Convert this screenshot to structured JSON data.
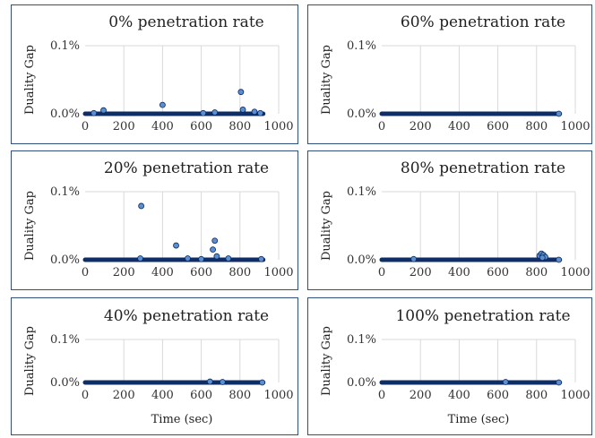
{
  "colors": {
    "marker_fill": "#5b8fd4",
    "marker_stroke": "#0d2a5c",
    "baseline": "#0f2d66",
    "grid": "#d9d9d9",
    "border": "#2f4f7f"
  },
  "chart_data": [
    {
      "type": "scatter",
      "title": "0% penetration rate",
      "ylabel": "Duality Gap",
      "xlabel": "",
      "x_ticks": [
        "0",
        "200",
        "400",
        "600",
        "800",
        "1000"
      ],
      "y_ticks": [
        "0.0%",
        "0.1%"
      ],
      "xlim": [
        0,
        1000
      ],
      "ylim": [
        0,
        0.1
      ],
      "grid": true,
      "baseline": {
        "x_start": 0,
        "x_end": 920,
        "y": 0
      },
      "points": [
        [
          45,
          0.001
        ],
        [
          95,
          0.005
        ],
        [
          400,
          0.013
        ],
        [
          610,
          0.001
        ],
        [
          670,
          0.002
        ],
        [
          805,
          0.032
        ],
        [
          815,
          0.006
        ],
        [
          875,
          0.003
        ],
        [
          905,
          0.001
        ]
      ]
    },
    {
      "type": "scatter",
      "title": "60% penetration rate",
      "ylabel": "Duality Gap",
      "xlabel": "",
      "x_ticks": [
        "0",
        "200",
        "400",
        "600",
        "800",
        "1000"
      ],
      "y_ticks": [
        "0.0%",
        "0.1%"
      ],
      "xlim": [
        0,
        1000
      ],
      "ylim": [
        0,
        0.1
      ],
      "grid": true,
      "baseline": {
        "x_start": 0,
        "x_end": 920,
        "y": 0
      },
      "points": [
        [
          915,
          0.0
        ]
      ]
    },
    {
      "type": "scatter",
      "title": "20% penetration rate",
      "ylabel": "Duality Gap",
      "xlabel": "",
      "x_ticks": [
        "0",
        "200",
        "400",
        "600",
        "800",
        "1000"
      ],
      "y_ticks": [
        "0.0%",
        "0.1%"
      ],
      "xlim": [
        0,
        1000
      ],
      "ylim": [
        0,
        0.1
      ],
      "grid": true,
      "baseline": {
        "x_start": 0,
        "x_end": 920,
        "y": 0
      },
      "points": [
        [
          290,
          0.079
        ],
        [
          285,
          0.002
        ],
        [
          470,
          0.021
        ],
        [
          530,
          0.002
        ],
        [
          600,
          0.001
        ],
        [
          660,
          0.015
        ],
        [
          670,
          0.028
        ],
        [
          680,
          0.005
        ],
        [
          740,
          0.002
        ],
        [
          910,
          0.001
        ]
      ]
    },
    {
      "type": "scatter",
      "title": "80% penetration rate",
      "ylabel": "Duality Gap",
      "xlabel": "",
      "x_ticks": [
        "0",
        "200",
        "400",
        "600",
        "800",
        "1000"
      ],
      "y_ticks": [
        "0.0%",
        "0.1%"
      ],
      "xlim": [
        0,
        1000
      ],
      "ylim": [
        0,
        0.1
      ],
      "grid": true,
      "baseline": {
        "x_start": 0,
        "x_end": 920,
        "y": 0
      },
      "points": [
        [
          165,
          0.001
        ],
        [
          815,
          0.006
        ],
        [
          825,
          0.009
        ],
        [
          835,
          0.007
        ],
        [
          845,
          0.004
        ],
        [
          830,
          0.003
        ],
        [
          915,
          0.0
        ]
      ]
    },
    {
      "type": "scatter",
      "title": "40% penetration rate",
      "ylabel": "Duality Gap",
      "xlabel": "Time (sec)",
      "x_ticks": [
        "0",
        "200",
        "400",
        "600",
        "800",
        "1000"
      ],
      "y_ticks": [
        "0.0%",
        "0.1%"
      ],
      "xlim": [
        0,
        1000
      ],
      "ylim": [
        0,
        0.1
      ],
      "grid": true,
      "baseline": {
        "x_start": 0,
        "x_end": 920,
        "y": 0
      },
      "points": [
        [
          645,
          0.002
        ],
        [
          710,
          0.001
        ],
        [
          915,
          0.0
        ]
      ]
    },
    {
      "type": "scatter",
      "title": "100% penetration rate",
      "ylabel": "Duality Gap",
      "xlabel": "Time (sec)",
      "x_ticks": [
        "0",
        "200",
        "400",
        "600",
        "800",
        "1000"
      ],
      "y_ticks": [
        "0.0%",
        "0.1%"
      ],
      "xlim": [
        0,
        1000
      ],
      "ylim": [
        0,
        0.1
      ],
      "grid": true,
      "baseline": {
        "x_start": 0,
        "x_end": 920,
        "y": 0
      },
      "points": [
        [
          640,
          0.001
        ],
        [
          915,
          0.0
        ]
      ]
    }
  ]
}
